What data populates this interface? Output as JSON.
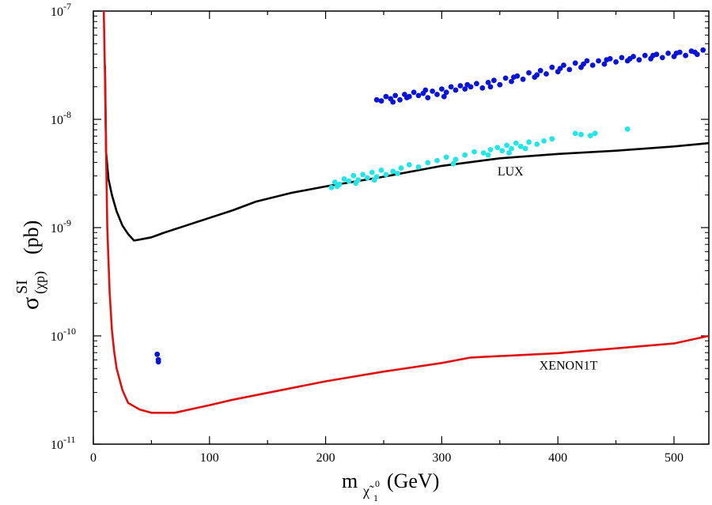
{
  "chart_data": {
    "type": "scatter",
    "title": "",
    "xlabel": {
      "main": "m",
      "sub": "χ̃",
      "subsub": "1",
      "sup": "0",
      "unit": "(GeV)"
    },
    "ylabel": {
      "main": "σ",
      "sup": "SI",
      "sub": "(χp)",
      "unit": "(pb)"
    },
    "xlim": [
      0,
      530
    ],
    "ylim_log10": [
      -11,
      -7
    ],
    "x_ticks": [
      {
        "value": 0,
        "label": "0"
      },
      {
        "value": 100,
        "label": "100"
      },
      {
        "value": 200,
        "label": "200"
      },
      {
        "value": 300,
        "label": "300"
      },
      {
        "value": 400,
        "label": "400"
      },
      {
        "value": 500,
        "label": "500"
      }
    ],
    "y_ticks": [
      {
        "exp": -7,
        "base": "10",
        "sup": "-7"
      },
      {
        "exp": -8,
        "base": "10",
        "sup": "-8"
      },
      {
        "exp": -9,
        "base": "10",
        "sup": "-9"
      },
      {
        "exp": -10,
        "base": "10",
        "sup": "-10"
      },
      {
        "exp": -11,
        "base": "10",
        "sup": "-11"
      }
    ],
    "colors": {
      "lux": "#000000",
      "xenon": "#e01010",
      "blue": "#0a14d8",
      "cyan": "#22e6e6",
      "frame": "#000000"
    },
    "series": [
      {
        "name": "LUX",
        "kind": "line",
        "color": "#000000",
        "points": [
          [
            10,
            -7.5
          ],
          [
            11,
            -8.3
          ],
          [
            13,
            -8.55
          ],
          [
            16,
            -8.7
          ],
          [
            20,
            -8.85
          ],
          [
            25,
            -8.98
          ],
          [
            30,
            -9.06
          ],
          [
            35,
            -9.12
          ],
          [
            40,
            -9.11
          ],
          [
            45,
            -9.1
          ],
          [
            50,
            -9.09
          ],
          [
            55,
            -9.07
          ],
          [
            60,
            -9.05
          ],
          [
            80,
            -8.98
          ],
          [
            100,
            -8.91
          ],
          [
            120,
            -8.84
          ],
          [
            140,
            -8.76
          ],
          [
            170,
            -8.68
          ],
          [
            200,
            -8.62
          ],
          [
            250,
            -8.53
          ],
          [
            300,
            -8.43
          ],
          [
            350,
            -8.36
          ],
          [
            400,
            -8.32
          ],
          [
            450,
            -8.29
          ],
          [
            500,
            -8.25
          ],
          [
            530,
            -8.22
          ]
        ]
      },
      {
        "name": "XENON1T",
        "kind": "line",
        "color": "#e01010",
        "points": [
          [
            9,
            -7.0
          ],
          [
            10,
            -7.6
          ],
          [
            11,
            -8.3
          ],
          [
            12,
            -9.0
          ],
          [
            14,
            -9.6
          ],
          [
            16,
            -9.95
          ],
          [
            18,
            -10.15
          ],
          [
            20,
            -10.3
          ],
          [
            25,
            -10.5
          ],
          [
            30,
            -10.62
          ],
          [
            40,
            -10.68
          ],
          [
            50,
            -10.71
          ],
          [
            60,
            -10.71
          ],
          [
            70,
            -10.71
          ],
          [
            100,
            -10.64
          ],
          [
            120,
            -10.59
          ],
          [
            200,
            -10.42
          ],
          [
            250,
            -10.33
          ],
          [
            300,
            -10.25
          ],
          [
            325,
            -10.2
          ],
          [
            400,
            -10.16
          ],
          [
            500,
            -10.07
          ],
          [
            530,
            -10.0
          ]
        ]
      },
      {
        "name": "blue points",
        "kind": "scatter",
        "color": "#0a14d8",
        "points": [
          [
            55,
            -10.17
          ],
          [
            56,
            -10.24
          ],
          [
            56,
            -10.22
          ],
          [
            244,
            -7.82
          ],
          [
            248,
            -7.83
          ],
          [
            252,
            -7.79
          ],
          [
            256,
            -7.81
          ],
          [
            260,
            -7.78
          ],
          [
            264,
            -7.82
          ],
          [
            268,
            -7.77
          ],
          [
            272,
            -7.79
          ],
          [
            276,
            -7.75
          ],
          [
            280,
            -7.78
          ],
          [
            284,
            -7.76
          ],
          [
            288,
            -7.8
          ],
          [
            292,
            -7.74
          ],
          [
            296,
            -7.77
          ],
          [
            300,
            -7.72
          ],
          [
            304,
            -7.75
          ],
          [
            308,
            -7.7
          ],
          [
            312,
            -7.73
          ],
          [
            316,
            -7.69
          ],
          [
            320,
            -7.72
          ],
          [
            325,
            -7.7
          ],
          [
            330,
            -7.67
          ],
          [
            335,
            -7.71
          ],
          [
            340,
            -7.66
          ],
          [
            345,
            -7.64
          ],
          [
            350,
            -7.68
          ],
          [
            355,
            -7.62
          ],
          [
            360,
            -7.65
          ],
          [
            365,
            -7.6
          ],
          [
            370,
            -7.63
          ],
          [
            375,
            -7.57
          ],
          [
            380,
            -7.61
          ],
          [
            385,
            -7.55
          ],
          [
            390,
            -7.58
          ],
          [
            395,
            -7.52
          ],
          [
            400,
            -7.56
          ],
          [
            405,
            -7.5
          ],
          [
            410,
            -7.54
          ],
          [
            415,
            -7.48
          ],
          [
            420,
            -7.52
          ],
          [
            425,
            -7.46
          ],
          [
            430,
            -7.5
          ],
          [
            435,
            -7.46
          ],
          [
            440,
            -7.49
          ],
          [
            445,
            -7.44
          ],
          [
            450,
            -7.47
          ],
          [
            455,
            -7.43
          ],
          [
            460,
            -7.46
          ],
          [
            465,
            -7.42
          ],
          [
            470,
            -7.45
          ],
          [
            475,
            -7.41
          ],
          [
            480,
            -7.44
          ],
          [
            485,
            -7.4
          ],
          [
            490,
            -7.43
          ],
          [
            495,
            -7.39
          ],
          [
            500,
            -7.42
          ],
          [
            505,
            -7.38
          ],
          [
            510,
            -7.41
          ],
          [
            515,
            -7.37
          ],
          [
            520,
            -7.4
          ],
          [
            525,
            -7.36
          ],
          [
            258,
            -7.84
          ],
          [
            270,
            -7.8
          ],
          [
            286,
            -7.73
          ],
          [
            302,
            -7.79
          ],
          [
            322,
            -7.68
          ],
          [
            342,
            -7.7
          ],
          [
            362,
            -7.61
          ],
          [
            382,
            -7.59
          ],
          [
            402,
            -7.53
          ],
          [
            422,
            -7.49
          ],
          [
            442,
            -7.45
          ],
          [
            462,
            -7.44
          ],
          [
            482,
            -7.41
          ],
          [
            502,
            -7.39
          ],
          [
            518,
            -7.38
          ]
        ]
      },
      {
        "name": "cyan points",
        "kind": "scatter",
        "color": "#22e6e6",
        "points": [
          [
            205,
            -8.63
          ],
          [
            208,
            -8.58
          ],
          [
            212,
            -8.6
          ],
          [
            216,
            -8.55
          ],
          [
            220,
            -8.57
          ],
          [
            224,
            -8.52
          ],
          [
            228,
            -8.56
          ],
          [
            232,
            -8.51
          ],
          [
            236,
            -8.54
          ],
          [
            240,
            -8.49
          ],
          [
            244,
            -8.53
          ],
          [
            248,
            -8.47
          ],
          [
            252,
            -8.51
          ],
          [
            258,
            -8.48
          ],
          [
            265,
            -8.45
          ],
          [
            272,
            -8.42
          ],
          [
            280,
            -8.44
          ],
          [
            288,
            -8.4
          ],
          [
            296,
            -8.38
          ],
          [
            304,
            -8.35
          ],
          [
            312,
            -8.37
          ],
          [
            320,
            -8.33
          ],
          [
            328,
            -8.3
          ],
          [
            336,
            -8.31
          ],
          [
            342,
            -8.28
          ],
          [
            348,
            -8.26
          ],
          [
            352,
            -8.29
          ],
          [
            356,
            -8.24
          ],
          [
            360,
            -8.27
          ],
          [
            364,
            -8.22
          ],
          [
            368,
            -8.25
          ],
          [
            375,
            -8.21
          ],
          [
            382,
            -8.23
          ],
          [
            388,
            -8.2
          ],
          [
            395,
            -8.18
          ],
          [
            415,
            -8.13
          ],
          [
            420,
            -8.14
          ],
          [
            428,
            -8.15
          ],
          [
            432,
            -8.13
          ],
          [
            460,
            -8.09
          ],
          [
            210,
            -8.62
          ],
          [
            226,
            -8.59
          ],
          [
            242,
            -8.56
          ],
          [
            262,
            -8.5
          ],
          [
            310,
            -8.41
          ],
          [
            340,
            -8.33
          ],
          [
            358,
            -8.31
          ],
          [
            372,
            -8.27
          ]
        ]
      }
    ],
    "annotations": [
      {
        "text": "LUX",
        "x": 348,
        "y": -8.52
      },
      {
        "text": "XENON1T",
        "x": 384,
        "y": -10.31
      }
    ]
  }
}
